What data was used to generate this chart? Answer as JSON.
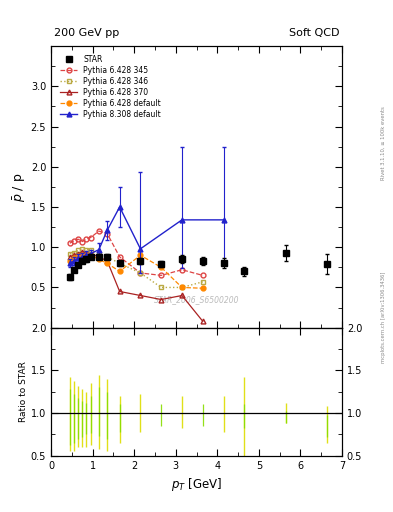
{
  "title_left": "200 GeV pp",
  "title_right": "Soft QCD",
  "ylabel_main": "$\\bar{p}$ / p",
  "ylabel_ratio": "Ratio to STAR",
  "xlabel": "$p_T$ [GeV]",
  "right_label1": "Rivet 3.1.10, ≥ 100k events",
  "right_label2": "mcplots.cern.ch [arXiv:1306.3436]",
  "watermark": "STAR_2006_S6500200",
  "star_x": [
    0.45,
    0.55,
    0.65,
    0.75,
    0.85,
    0.95,
    1.15,
    1.35,
    1.65,
    2.15,
    2.65,
    3.15,
    3.65,
    4.15,
    4.65,
    5.65,
    6.65
  ],
  "star_y": [
    0.63,
    0.72,
    0.78,
    0.83,
    0.85,
    0.88,
    0.88,
    0.88,
    0.8,
    0.83,
    0.79,
    0.85,
    0.83,
    0.8,
    0.7,
    0.93,
    0.79
  ],
  "star_yerr": [
    0.04,
    0.03,
    0.03,
    0.03,
    0.03,
    0.03,
    0.03,
    0.03,
    0.03,
    0.04,
    0.04,
    0.05,
    0.05,
    0.06,
    0.06,
    0.1,
    0.12
  ],
  "star_color": "#000000",
  "p6_345_x": [
    0.45,
    0.55,
    0.65,
    0.75,
    0.85,
    0.95,
    1.15,
    1.35,
    1.65,
    2.15,
    2.65,
    3.15,
    3.65
  ],
  "p6_345_y": [
    1.05,
    1.08,
    1.1,
    1.07,
    1.1,
    1.12,
    1.2,
    1.17,
    0.88,
    0.68,
    0.65,
    0.72,
    0.65
  ],
  "p6_345_color": "#dd4444",
  "p6_346_x": [
    0.45,
    0.55,
    0.65,
    0.75,
    0.85,
    0.95,
    1.15,
    1.35,
    1.65,
    2.15,
    2.65,
    3.15,
    3.65
  ],
  "p6_346_y": [
    0.92,
    0.93,
    0.96,
    0.98,
    0.97,
    0.97,
    0.92,
    0.88,
    0.8,
    0.68,
    0.5,
    0.5,
    0.57
  ],
  "p6_346_color": "#bbaa44",
  "p6_370_x": [
    0.45,
    0.55,
    0.65,
    0.75,
    0.85,
    0.95,
    1.15,
    1.35,
    1.65,
    2.15,
    2.65,
    3.15,
    3.65
  ],
  "p6_370_y": [
    0.88,
    0.9,
    0.92,
    0.94,
    0.93,
    0.92,
    0.88,
    0.83,
    0.45,
    0.4,
    0.35,
    0.4,
    0.08
  ],
  "p6_370_color": "#aa2222",
  "p6_def_x": [
    0.45,
    0.55,
    0.65,
    0.75,
    0.85,
    0.95,
    1.15,
    1.35,
    1.65,
    2.15,
    2.65,
    3.15,
    3.65
  ],
  "p6_def_y": [
    0.83,
    0.87,
    0.89,
    0.9,
    0.9,
    0.9,
    0.85,
    0.8,
    0.7,
    0.9,
    0.75,
    0.5,
    0.49
  ],
  "p6_def_color": "#ff8800",
  "p8_def_x": [
    0.45,
    0.55,
    0.65,
    0.75,
    0.85,
    0.95,
    1.15,
    1.35,
    1.65,
    2.15,
    3.15,
    4.15
  ],
  "p8_def_y": [
    0.8,
    0.83,
    0.86,
    0.88,
    0.9,
    0.92,
    0.97,
    1.21,
    1.5,
    0.98,
    1.34,
    1.34
  ],
  "p8_def_yerr_lo": [
    0.05,
    0.05,
    0.05,
    0.05,
    0.05,
    0.05,
    0.08,
    0.12,
    0.25,
    0.3,
    0.6,
    0.55
  ],
  "p8_def_yerr_hi": [
    0.05,
    0.05,
    0.05,
    0.05,
    0.05,
    0.05,
    0.08,
    0.12,
    0.25,
    0.95,
    0.9,
    0.9
  ],
  "p8_def_color": "#2222cc",
  "ratio_yellow_x": [
    0.45,
    0.55,
    0.65,
    0.75,
    0.85,
    0.95,
    1.15,
    1.35,
    1.65,
    2.15,
    3.15,
    4.15,
    4.65,
    5.65,
    6.65
  ],
  "ratio_yellow_lo": [
    0.55,
    0.55,
    0.6,
    0.6,
    0.6,
    0.62,
    0.58,
    0.55,
    0.65,
    0.78,
    0.82,
    0.78,
    0.5,
    0.88,
    0.65
  ],
  "ratio_yellow_hi": [
    1.42,
    1.37,
    1.32,
    1.28,
    1.25,
    1.35,
    1.45,
    1.4,
    1.2,
    1.22,
    1.2,
    1.2,
    1.42,
    1.12,
    1.08
  ],
  "ratio_green_x": [
    0.45,
    0.55,
    0.65,
    0.75,
    0.85,
    0.95,
    1.15,
    1.35,
    1.65,
    2.65,
    3.65,
    4.65,
    5.65,
    6.65
  ],
  "ratio_green_lo": [
    0.62,
    0.65,
    0.7,
    0.72,
    0.75,
    0.76,
    0.73,
    0.7,
    0.78,
    0.85,
    0.85,
    0.82,
    0.88,
    0.72
  ],
  "ratio_green_hi": [
    1.28,
    1.22,
    1.18,
    1.14,
    1.12,
    1.2,
    1.3,
    1.25,
    1.1,
    1.1,
    1.1,
    1.1,
    1.02,
    0.98
  ],
  "xlim": [
    0,
    7
  ],
  "ylim_main": [
    0,
    3.5
  ],
  "ylim_ratio": [
    0.5,
    2.0
  ],
  "yticks_main": [
    0.5,
    1.0,
    1.5,
    2.0,
    2.5,
    3.0
  ],
  "yticks_ratio": [
    0.5,
    1.0,
    1.5,
    2.0
  ]
}
